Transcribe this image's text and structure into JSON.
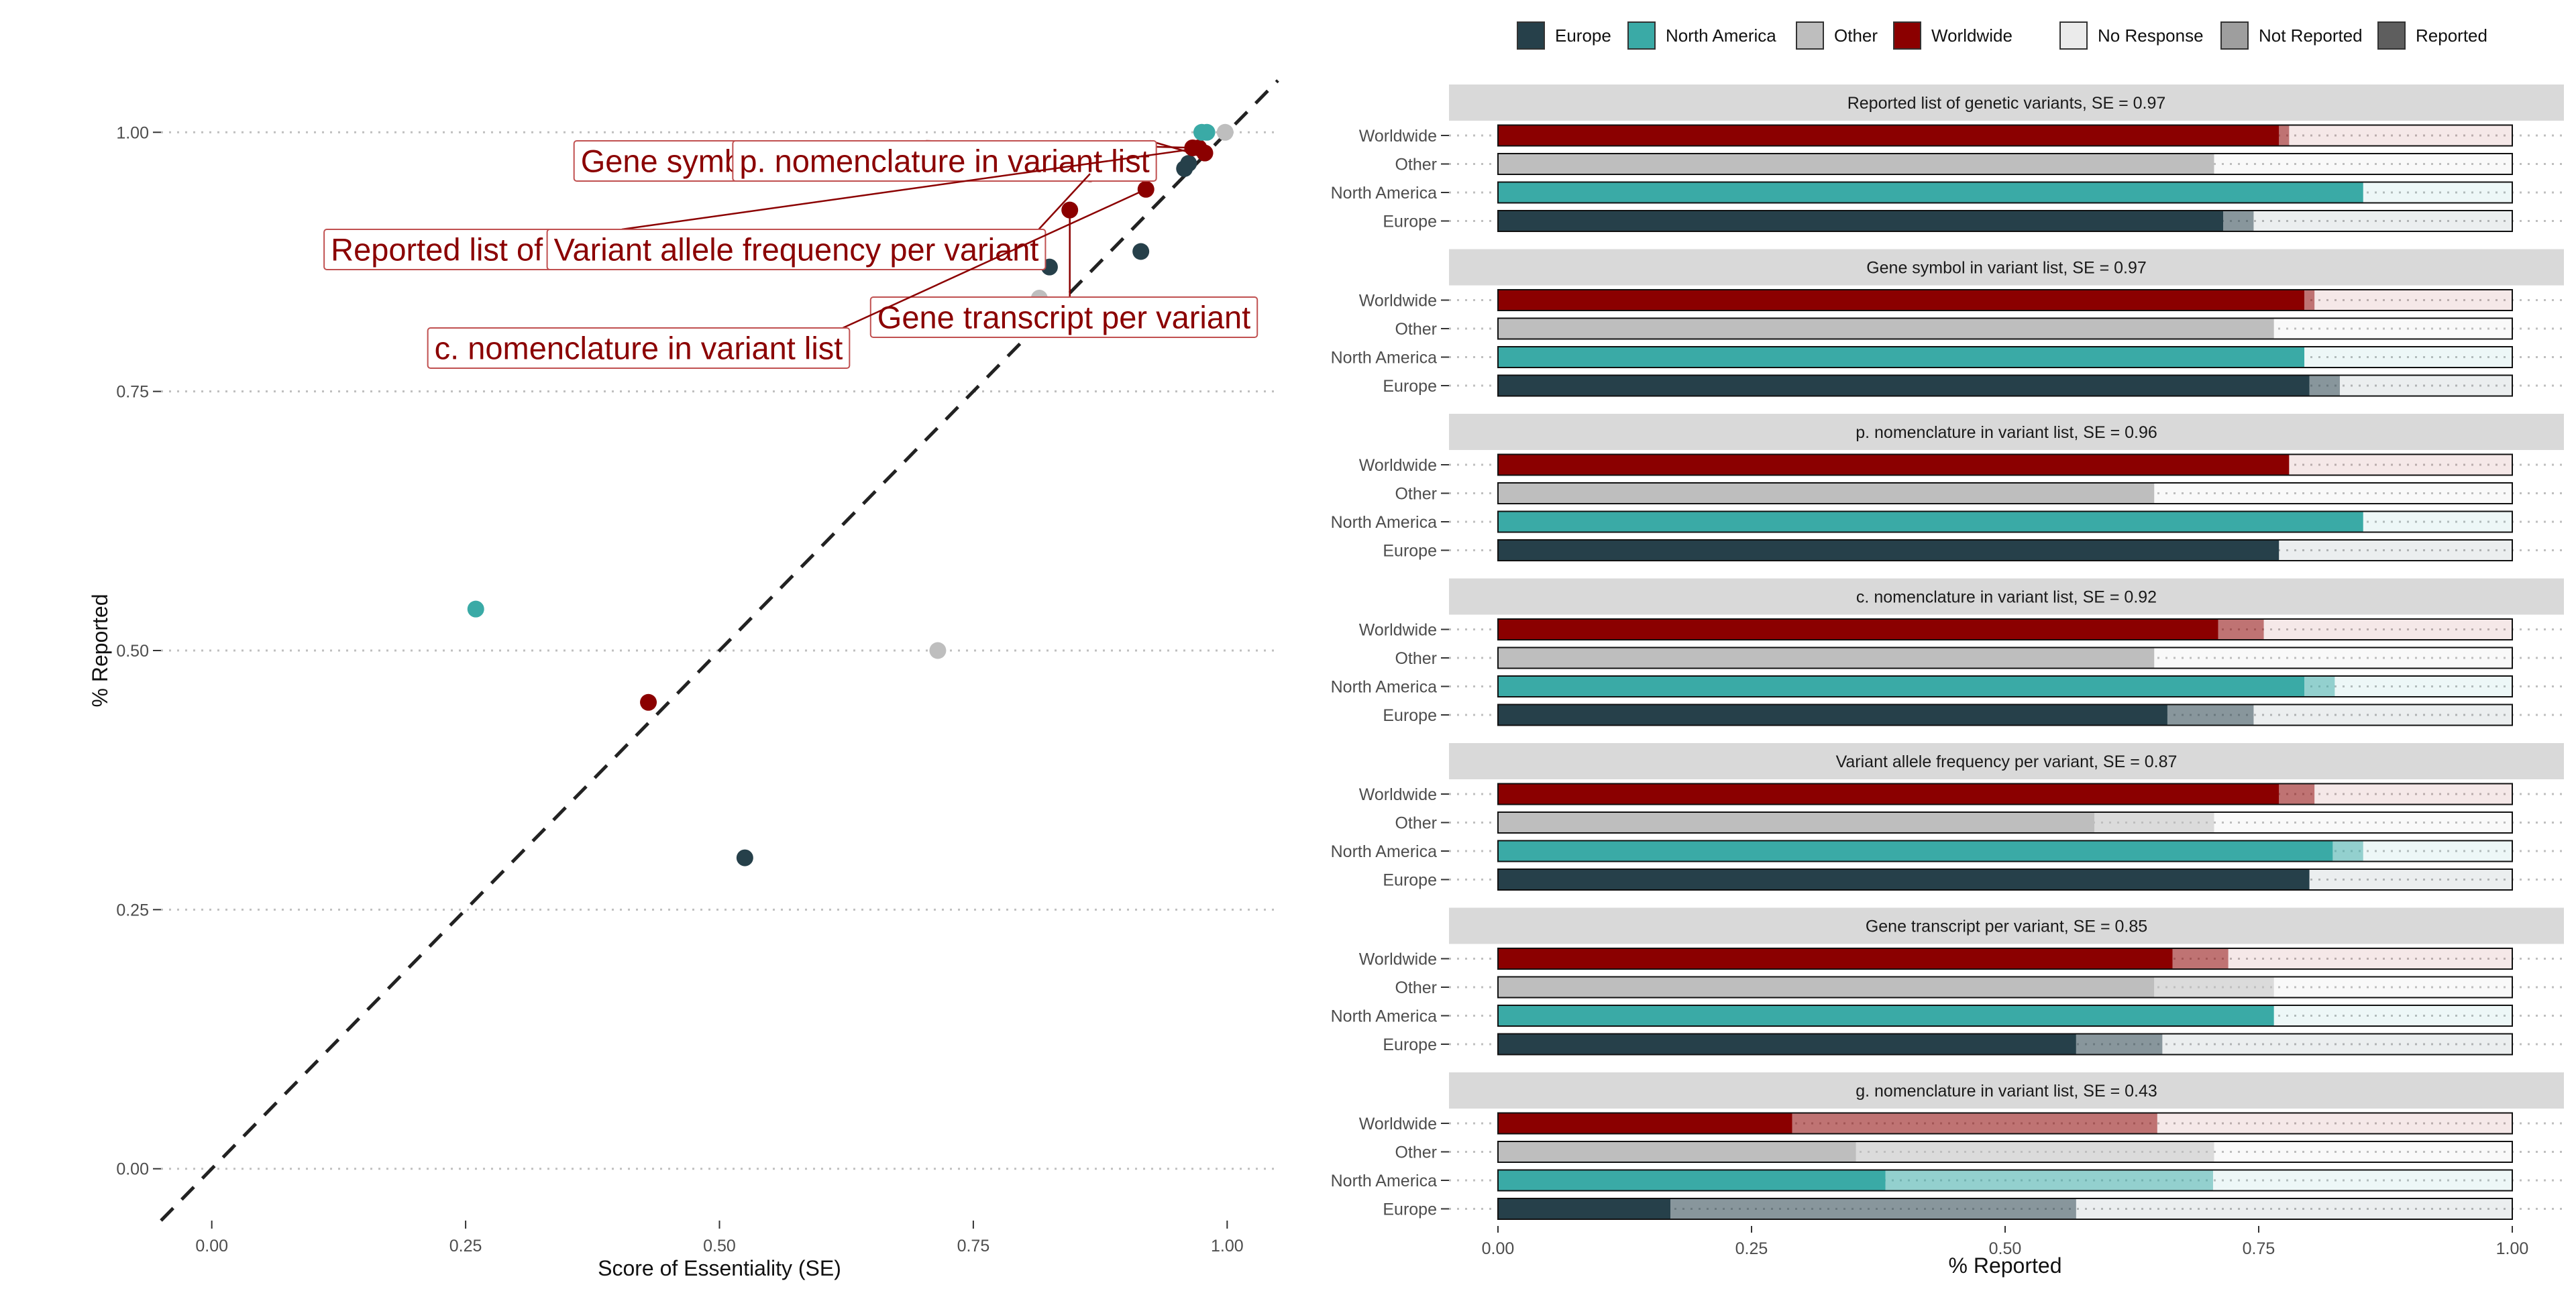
{
  "colors": {
    "Europe": "#26404A",
    "North America": "#3AAAA6",
    "Other": "#BEBEBE",
    "Worldwide": "#8B0000",
    "text": "#4D4D4D",
    "strip": "#D9D9D9",
    "grid": "#BFBFBF"
  },
  "legend": {
    "placement": "top",
    "region_items": [
      "Europe",
      "North America",
      "Other",
      "Worldwide"
    ],
    "status_items": [
      "No Response",
      "Not Reported",
      "Reported"
    ]
  },
  "chart_data": [
    {
      "type": "scatter",
      "xlabel": "Score of Essentiality (SE)",
      "ylabel": "% Reported",
      "xlim": [
        -0.05,
        1.05
      ],
      "ylim": [
        -0.05,
        1.05
      ],
      "xticks": [
        "0.00",
        "0.25",
        "0.50",
        "0.75",
        "1.00"
      ],
      "yticks": [
        "0.00",
        "0.25",
        "0.50",
        "0.75",
        "1.00"
      ],
      "reference_line": "y = x (dashed)",
      "grid": "horizontal dotted",
      "points": [
        {
          "region": "North America",
          "x": 0.26,
          "y": 0.54
        },
        {
          "region": "Worldwide",
          "x": 0.43,
          "y": 0.45
        },
        {
          "region": "Europe",
          "x": 0.525,
          "y": 0.3
        },
        {
          "region": "Other",
          "x": 0.715,
          "y": 0.5
        },
        {
          "region": "North America",
          "x": 0.74,
          "y": 0.965
        },
        {
          "region": "Other",
          "x": 0.815,
          "y": 0.84
        },
        {
          "region": "Europe",
          "x": 0.825,
          "y": 0.87
        },
        {
          "region": "Worldwide",
          "x": 0.845,
          "y": 0.925
        },
        {
          "region": "Worldwide",
          "x": 0.865,
          "y": 0.96
        },
        {
          "region": "North America",
          "x": 0.89,
          "y": 0.965
        },
        {
          "region": "Europe",
          "x": 0.915,
          "y": 0.885
        },
        {
          "region": "Worldwide",
          "x": 0.92,
          "y": 0.945
        },
        {
          "region": "Europe",
          "x": 0.958,
          "y": 0.965
        },
        {
          "region": "Europe",
          "x": 0.962,
          "y": 0.97
        },
        {
          "region": "Worldwide",
          "x": 0.966,
          "y": 0.985
        },
        {
          "region": "Worldwide",
          "x": 0.972,
          "y": 0.985
        },
        {
          "region": "North America",
          "x": 0.975,
          "y": 1.0
        },
        {
          "region": "North America",
          "x": 0.98,
          "y": 1.0
        },
        {
          "region": "Worldwide",
          "x": 0.978,
          "y": 0.98
        },
        {
          "region": "Other",
          "x": 0.998,
          "y": 1.0
        }
      ],
      "annotations": [
        {
          "text": "Gene symbol in variant li",
          "x": 0.97,
          "y": 0.985
        },
        {
          "text": "p. nomenclature in variant list",
          "x": 0.965,
          "y": 0.98
        },
        {
          "text": "Reported list of gene",
          "x": 0.975,
          "y": 0.985
        },
        {
          "text": "Variant allele frequency per variant",
          "x": 0.865,
          "y": 0.96
        },
        {
          "text": "Gene transcript per variant",
          "x": 0.845,
          "y": 0.925
        },
        {
          "text": "c. nomenclature in variant list",
          "x": 0.92,
          "y": 0.945
        }
      ]
    },
    {
      "type": "bar",
      "orientation": "horizontal-stacked",
      "xlabel": "% Reported",
      "xlim": [
        0,
        1
      ],
      "xticks": [
        "0.00",
        "0.25",
        "0.50",
        "0.75",
        "1.00"
      ],
      "categories": [
        "Worldwide",
        "Other",
        "North America",
        "Europe"
      ],
      "segments": [
        "Reported",
        "Not Reported",
        "No Response"
      ],
      "panels": [
        {
          "title": "Reported list of genetic variants, SE = 0.97",
          "rows": [
            {
              "region": "Worldwide",
              "reported": 0.77,
              "not_reported": 0.01,
              "no_response": 0.22
            },
            {
              "region": "Other",
              "reported": 0.706,
              "not_reported": 0.0,
              "no_response": 0.294
            },
            {
              "region": "North America",
              "reported": 0.853,
              "not_reported": 0.0,
              "no_response": 0.147
            },
            {
              "region": "Europe",
              "reported": 0.715,
              "not_reported": 0.03,
              "no_response": 0.255
            }
          ]
        },
        {
          "title": "Gene symbol in variant list, SE = 0.97",
          "rows": [
            {
              "region": "Worldwide",
              "reported": 0.795,
              "not_reported": 0.01,
              "no_response": 0.195
            },
            {
              "region": "Other",
              "reported": 0.765,
              "not_reported": 0.0,
              "no_response": 0.235
            },
            {
              "region": "North America",
              "reported": 0.795,
              "not_reported": 0.0,
              "no_response": 0.205
            },
            {
              "region": "Europe",
              "reported": 0.8,
              "not_reported": 0.03,
              "no_response": 0.17
            }
          ]
        },
        {
          "title": "p. nomenclature in variant list, SE = 0.96",
          "rows": [
            {
              "region": "Worldwide",
              "reported": 0.78,
              "not_reported": 0.0,
              "no_response": 0.22
            },
            {
              "region": "Other",
              "reported": 0.647,
              "not_reported": 0.0,
              "no_response": 0.353
            },
            {
              "region": "North America",
              "reported": 0.853,
              "not_reported": 0.0,
              "no_response": 0.147
            },
            {
              "region": "Europe",
              "reported": 0.77,
              "not_reported": 0.0,
              "no_response": 0.23
            }
          ]
        },
        {
          "title": "c. nomenclature in variant list, SE = 0.92",
          "rows": [
            {
              "region": "Worldwide",
              "reported": 0.71,
              "not_reported": 0.045,
              "no_response": 0.245
            },
            {
              "region": "Other",
              "reported": 0.647,
              "not_reported": 0.0,
              "no_response": 0.353
            },
            {
              "region": "North America",
              "reported": 0.795,
              "not_reported": 0.03,
              "no_response": 0.175
            },
            {
              "region": "Europe",
              "reported": 0.66,
              "not_reported": 0.085,
              "no_response": 0.255
            }
          ]
        },
        {
          "title": "Variant allele frequency per variant, SE = 0.87",
          "rows": [
            {
              "region": "Worldwide",
              "reported": 0.77,
              "not_reported": 0.035,
              "no_response": 0.195
            },
            {
              "region": "Other",
              "reported": 0.588,
              "not_reported": 0.118,
              "no_response": 0.294
            },
            {
              "region": "North America",
              "reported": 0.823,
              "not_reported": 0.03,
              "no_response": 0.147
            },
            {
              "region": "Europe",
              "reported": 0.8,
              "not_reported": 0.0,
              "no_response": 0.2
            }
          ]
        },
        {
          "title": "Gene transcript per variant, SE = 0.85",
          "rows": [
            {
              "region": "Worldwide",
              "reported": 0.665,
              "not_reported": 0.055,
              "no_response": 0.28
            },
            {
              "region": "Other",
              "reported": 0.647,
              "not_reported": 0.118,
              "no_response": 0.235
            },
            {
              "region": "North America",
              "reported": 0.765,
              "not_reported": 0.0,
              "no_response": 0.235
            },
            {
              "region": "Europe",
              "reported": 0.57,
              "not_reported": 0.085,
              "no_response": 0.345
            }
          ]
        },
        {
          "title": "g. nomenclature in variant list, SE = 0.43",
          "rows": [
            {
              "region": "Worldwide",
              "reported": 0.29,
              "not_reported": 0.36,
              "no_response": 0.35
            },
            {
              "region": "Other",
              "reported": 0.353,
              "not_reported": 0.353,
              "no_response": 0.294
            },
            {
              "region": "North America",
              "reported": 0.382,
              "not_reported": 0.323,
              "no_response": 0.295
            },
            {
              "region": "Europe",
              "reported": 0.17,
              "not_reported": 0.4,
              "no_response": 0.43
            }
          ]
        }
      ]
    }
  ]
}
